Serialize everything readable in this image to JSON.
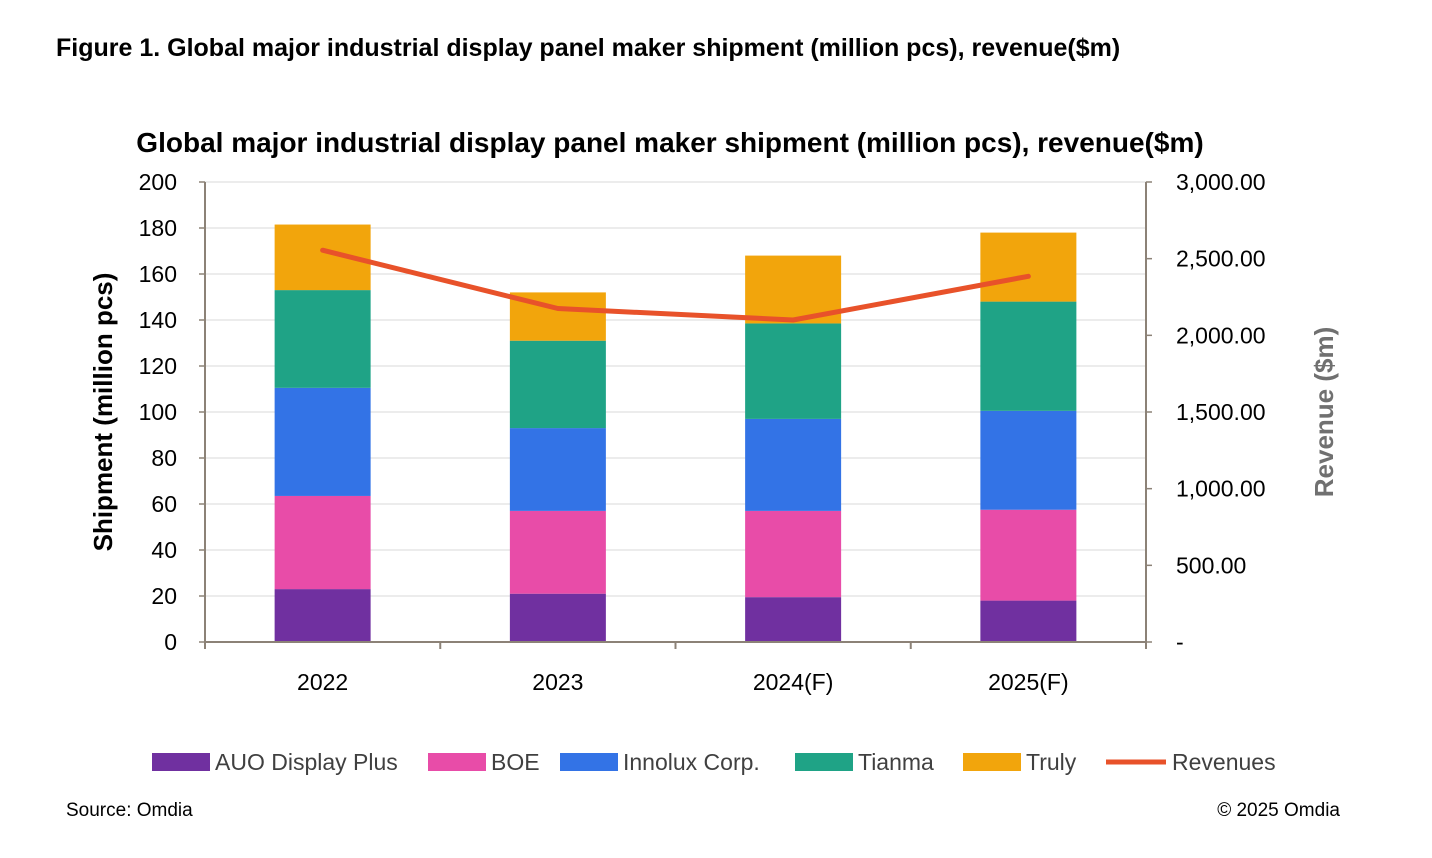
{
  "figure_title": "Figure 1. Global major industrial display panel maker shipment (million pcs), revenue($m)",
  "source": "Source: Omdia",
  "copyright": "©  2025 Omdia",
  "chart_data": {
    "type": "bar",
    "stacked": true,
    "title": "Global major industrial display panel maker shipment (million pcs), revenue($m)",
    "categories": [
      "2022",
      "2023",
      "2024(F)",
      "2025(F)"
    ],
    "ylabel": "Shipment (million pcs)",
    "ylim": [
      0,
      200
    ],
    "yticks": [
      0,
      20,
      40,
      60,
      80,
      100,
      120,
      140,
      160,
      180,
      200
    ],
    "y2label": "Revenue ($m)",
    "y2lim": [
      0,
      3000
    ],
    "y2ticks": [
      "-",
      "500.00",
      "1,000.00",
      "1,500.00",
      "2,000.00",
      "2,500.00",
      "3,000.00"
    ],
    "grid": true,
    "legend_position": "bottom",
    "series": [
      {
        "name": "AUO Display Plus",
        "color": "#7030A0",
        "values": [
          23,
          21,
          19.5,
          18
        ]
      },
      {
        "name": "BOE",
        "color": "#E84CA8",
        "values": [
          40.5,
          36,
          37.5,
          39.5
        ]
      },
      {
        "name": "Innolux Corp.",
        "color": "#3373E6",
        "values": [
          47,
          36,
          40,
          43
        ]
      },
      {
        "name": "Tianma",
        "color": "#1FA386",
        "values": [
          42.5,
          38,
          41.5,
          47.5
        ]
      },
      {
        "name": "Truly",
        "color": "#F2A50C",
        "values": [
          28.5,
          21,
          29.5,
          30
        ]
      }
    ],
    "line_series": {
      "name": "Revenues",
      "color": "#E8522A",
      "axis": "secondary",
      "values": [
        2555,
        2175,
        2100,
        2385
      ]
    }
  }
}
